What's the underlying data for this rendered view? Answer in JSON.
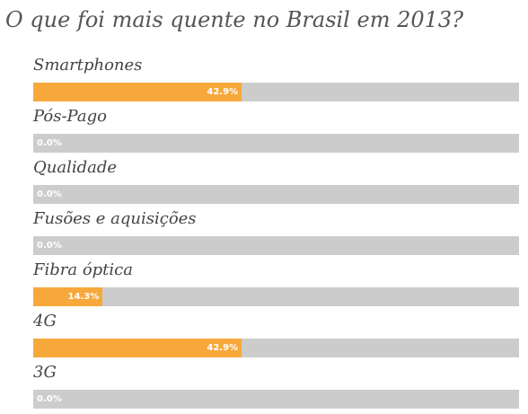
{
  "poll": {
    "question": "O que foi mais quente no Brasil em 2013?",
    "options": [
      {
        "label": "Smartphones",
        "percent": 42.9,
        "percent_text": "42.9%"
      },
      {
        "label": "Pós-Pago",
        "percent": 0.0,
        "percent_text": "0.0%"
      },
      {
        "label": "Qualidade",
        "percent": 0.0,
        "percent_text": "0.0%"
      },
      {
        "label": "Fusões e aquisições",
        "percent": 0.0,
        "percent_text": "0.0%"
      },
      {
        "label": "Fibra óptica",
        "percent": 14.3,
        "percent_text": "14.3%"
      },
      {
        "label": "4G",
        "percent": 42.9,
        "percent_text": "42.9%"
      },
      {
        "label": "3G",
        "percent": 0.0,
        "percent_text": "0.0%"
      }
    ]
  },
  "colors": {
    "bar_fill": "#f7a83b",
    "bar_track": "#cccccc",
    "title_text": "#555555",
    "label_text": "#444444"
  }
}
